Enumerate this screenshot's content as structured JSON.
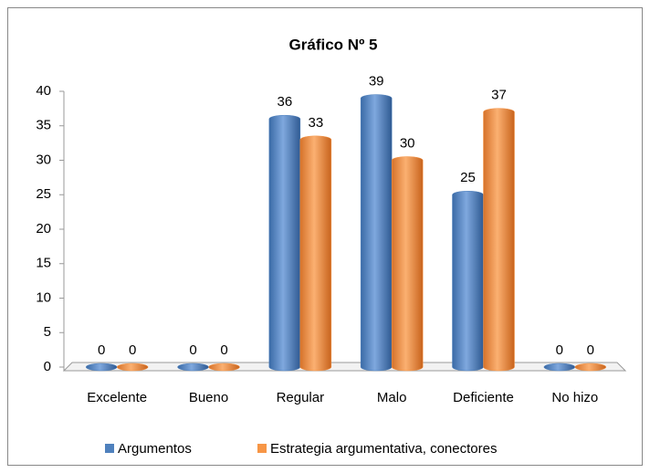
{
  "chart_data": {
    "type": "bar",
    "title": "Gráfico Nº 5",
    "categories": [
      "Excelente",
      "Bueno",
      "Regular",
      "Malo",
      "Deficiente",
      "No hizo"
    ],
    "series": [
      {
        "name": "Argumentos",
        "color": "#4f81bd",
        "values": [
          0,
          0,
          36,
          39,
          25,
          0
        ]
      },
      {
        "name": "Estrategia argumentativa, conectores",
        "color": "#f79646",
        "values": [
          0,
          0,
          33,
          30,
          37,
          0
        ]
      }
    ],
    "ylim": [
      0,
      40
    ],
    "yticks": [
      0,
      5,
      10,
      15,
      20,
      25,
      30,
      35,
      40
    ],
    "legend": "bottom"
  }
}
